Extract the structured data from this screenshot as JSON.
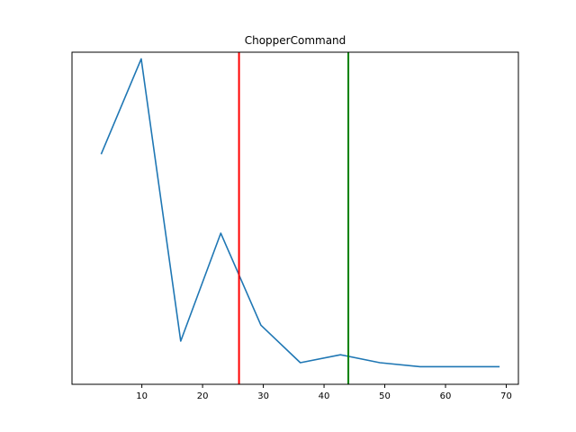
{
  "chart_data": {
    "type": "line",
    "title": "ChopperCommand",
    "xlabel": "",
    "ylabel": "",
    "xlim": [
      -1.5,
      72
    ],
    "ylim": [
      0.0,
      1.0
    ],
    "xticks": [
      10,
      20,
      30,
      40,
      50,
      60,
      70
    ],
    "yticks_shown": false,
    "grid": false,
    "series": [
      {
        "color": "#1f77b4",
        "x": [
          3.3,
          9.9,
          16.4,
          23.0,
          29.6,
          36.1,
          42.7,
          49.2,
          55.8,
          62.4,
          68.9
        ],
        "y": [
          0.693,
          0.98,
          0.13,
          0.455,
          0.178,
          0.065,
          0.089,
          0.065,
          0.053,
          0.053,
          0.053
        ]
      }
    ],
    "vlines": [
      {
        "x": 26.0,
        "color": "#ff0000"
      },
      {
        "x": 44.0,
        "color": "#008000"
      }
    ]
  }
}
